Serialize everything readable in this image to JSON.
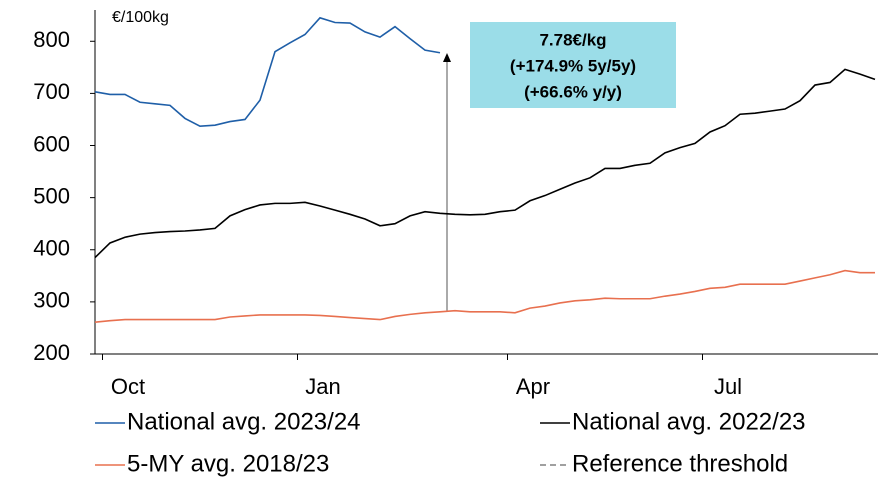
{
  "chart_data": {
    "type": "line",
    "y_label": "€/100kg",
    "annotation": [
      "7.78€/kg",
      "(+174.9% 5y/5y)",
      "(+66.6% y/y)"
    ],
    "categories": [
      null,
      null,
      "Oct",
      null,
      null,
      null,
      null,
      null,
      null,
      null,
      null,
      null,
      null,
      null,
      null,
      "Jan",
      null,
      null,
      null,
      null,
      null,
      null,
      null,
      null,
      null,
      null,
      null,
      null,
      null,
      "Apr",
      null,
      null,
      null,
      null,
      null,
      null,
      null,
      null,
      null,
      null,
      null,
      null,
      "Jul",
      null,
      null,
      null,
      null,
      null,
      null,
      null,
      null,
      null,
      null
    ],
    "ylim": [
      200,
      860
    ],
    "yticks": [
      200,
      300,
      400,
      500,
      600,
      700,
      800
    ],
    "grid": false,
    "series": [
      {
        "name": "National avg. 2023/24",
        "color": "#1f5fa8",
        "values": [
          703,
          698,
          698,
          683,
          680,
          677,
          652,
          637,
          639,
          646,
          650,
          687,
          780,
          797,
          813,
          845,
          836,
          835,
          818,
          808,
          828,
          805,
          783,
          778,
          null,
          null,
          null,
          null,
          null,
          null,
          null,
          null,
          null,
          null,
          null,
          null,
          null,
          null,
          null,
          null,
          null,
          null,
          null,
          null,
          null,
          null,
          null,
          null,
          null,
          null,
          null,
          null,
          null
        ]
      },
      {
        "name": "National avg. 2022/23",
        "color": "#000000",
        "values": [
          385,
          413,
          424,
          430,
          433,
          435,
          436,
          438,
          441,
          465,
          477,
          486,
          489,
          489,
          491,
          484,
          476,
          468,
          459,
          446,
          450,
          465,
          473,
          470,
          468,
          467,
          468,
          473,
          476,
          494,
          504,
          516,
          528,
          538,
          556,
          556,
          562,
          566,
          586,
          596,
          604,
          626,
          638,
          660,
          662,
          666,
          670,
          686,
          716,
          721,
          746,
          737,
          727
        ]
      },
      {
        "name": "5-MY avg. 2018/23",
        "color": "#e8704f",
        "values": [
          261,
          264,
          266,
          266,
          266,
          266,
          266,
          266,
          266,
          271,
          273,
          275,
          275,
          275,
          275,
          274,
          272,
          270,
          268,
          266,
          272,
          276,
          279,
          281,
          283,
          281,
          281,
          281,
          279,
          288,
          292,
          298,
          302,
          304,
          307,
          306,
          306,
          306,
          311,
          315,
          320,
          326,
          328,
          334,
          334,
          334,
          334,
          340,
          346,
          352,
          360,
          356,
          356
        ]
      }
    ],
    "reference": {
      "name": "Reference threshold",
      "color": "#808080",
      "style": "dashed"
    }
  }
}
